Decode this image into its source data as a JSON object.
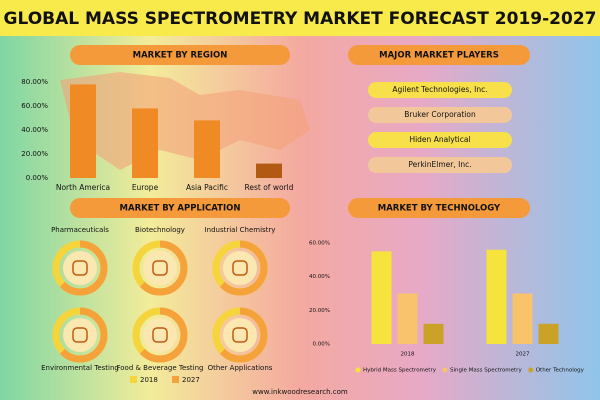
{
  "title": "GLOBAL MASS SPECTROMETRY MARKET FORECAST 2019-2027",
  "chart_data": [
    {
      "type": "bar",
      "title": "MARKET BY REGION",
      "categories": [
        "North America",
        "Europe",
        "Asia Pacific",
        "Rest of world"
      ],
      "values": [
        78,
        58,
        48,
        12
      ],
      "colors": [
        "#f08a24",
        "#f08a24",
        "#f08a24",
        "#b35a12"
      ],
      "ylim": [
        0,
        80
      ],
      "yticks": [
        {
          "value": 0,
          "label": "0.00%"
        },
        {
          "value": 20,
          "label": "20.00%"
        },
        {
          "value": 40,
          "label": "40.00%"
        },
        {
          "value": 60,
          "label": "60.00%"
        },
        {
          "value": 80,
          "label": "80.00%"
        }
      ]
    },
    {
      "type": "bar",
      "title": "MARKET BY TECHNOLOGY",
      "categories": [
        "2018",
        "2027"
      ],
      "series": [
        {
          "name": "Hybrid Mass Spectrometry",
          "color": "#f6e33c",
          "values": [
            55,
            56
          ]
        },
        {
          "name": "Single Mass Spectrometry",
          "color": "#f8c36a",
          "values": [
            30,
            30
          ]
        },
        {
          "name": "Other Technology",
          "color": "#c9a227",
          "values": [
            12,
            12
          ]
        }
      ],
      "ylim": [
        0,
        60
      ],
      "yticks": [
        {
          "value": 0,
          "label": "0.00%"
        },
        {
          "value": 20,
          "label": "20.00%"
        },
        {
          "value": 40,
          "label": "40.00%"
        },
        {
          "value": 60,
          "label": "60.00%"
        }
      ]
    }
  ],
  "players": {
    "title": "MAJOR MARKET PLAYERS",
    "items": [
      "Agilent Technologies, Inc.",
      "Bruker Corporation",
      "Hiden Analytical",
      "PerkinElmer, Inc."
    ]
  },
  "applications": {
    "title": "MARKET BY APPLICATION",
    "items": [
      "Pharmaceuticals",
      "Biotechnology",
      "Industrial Chemistry",
      "Environmental Testing",
      "Food & Beverage Testing",
      "Other Applications"
    ],
    "legend": [
      {
        "name": "2018",
        "color": "#f6d43c"
      },
      {
        "name": "2027",
        "color": "#f5a23a"
      }
    ]
  },
  "footer": "www.inkwoodresearch.com"
}
